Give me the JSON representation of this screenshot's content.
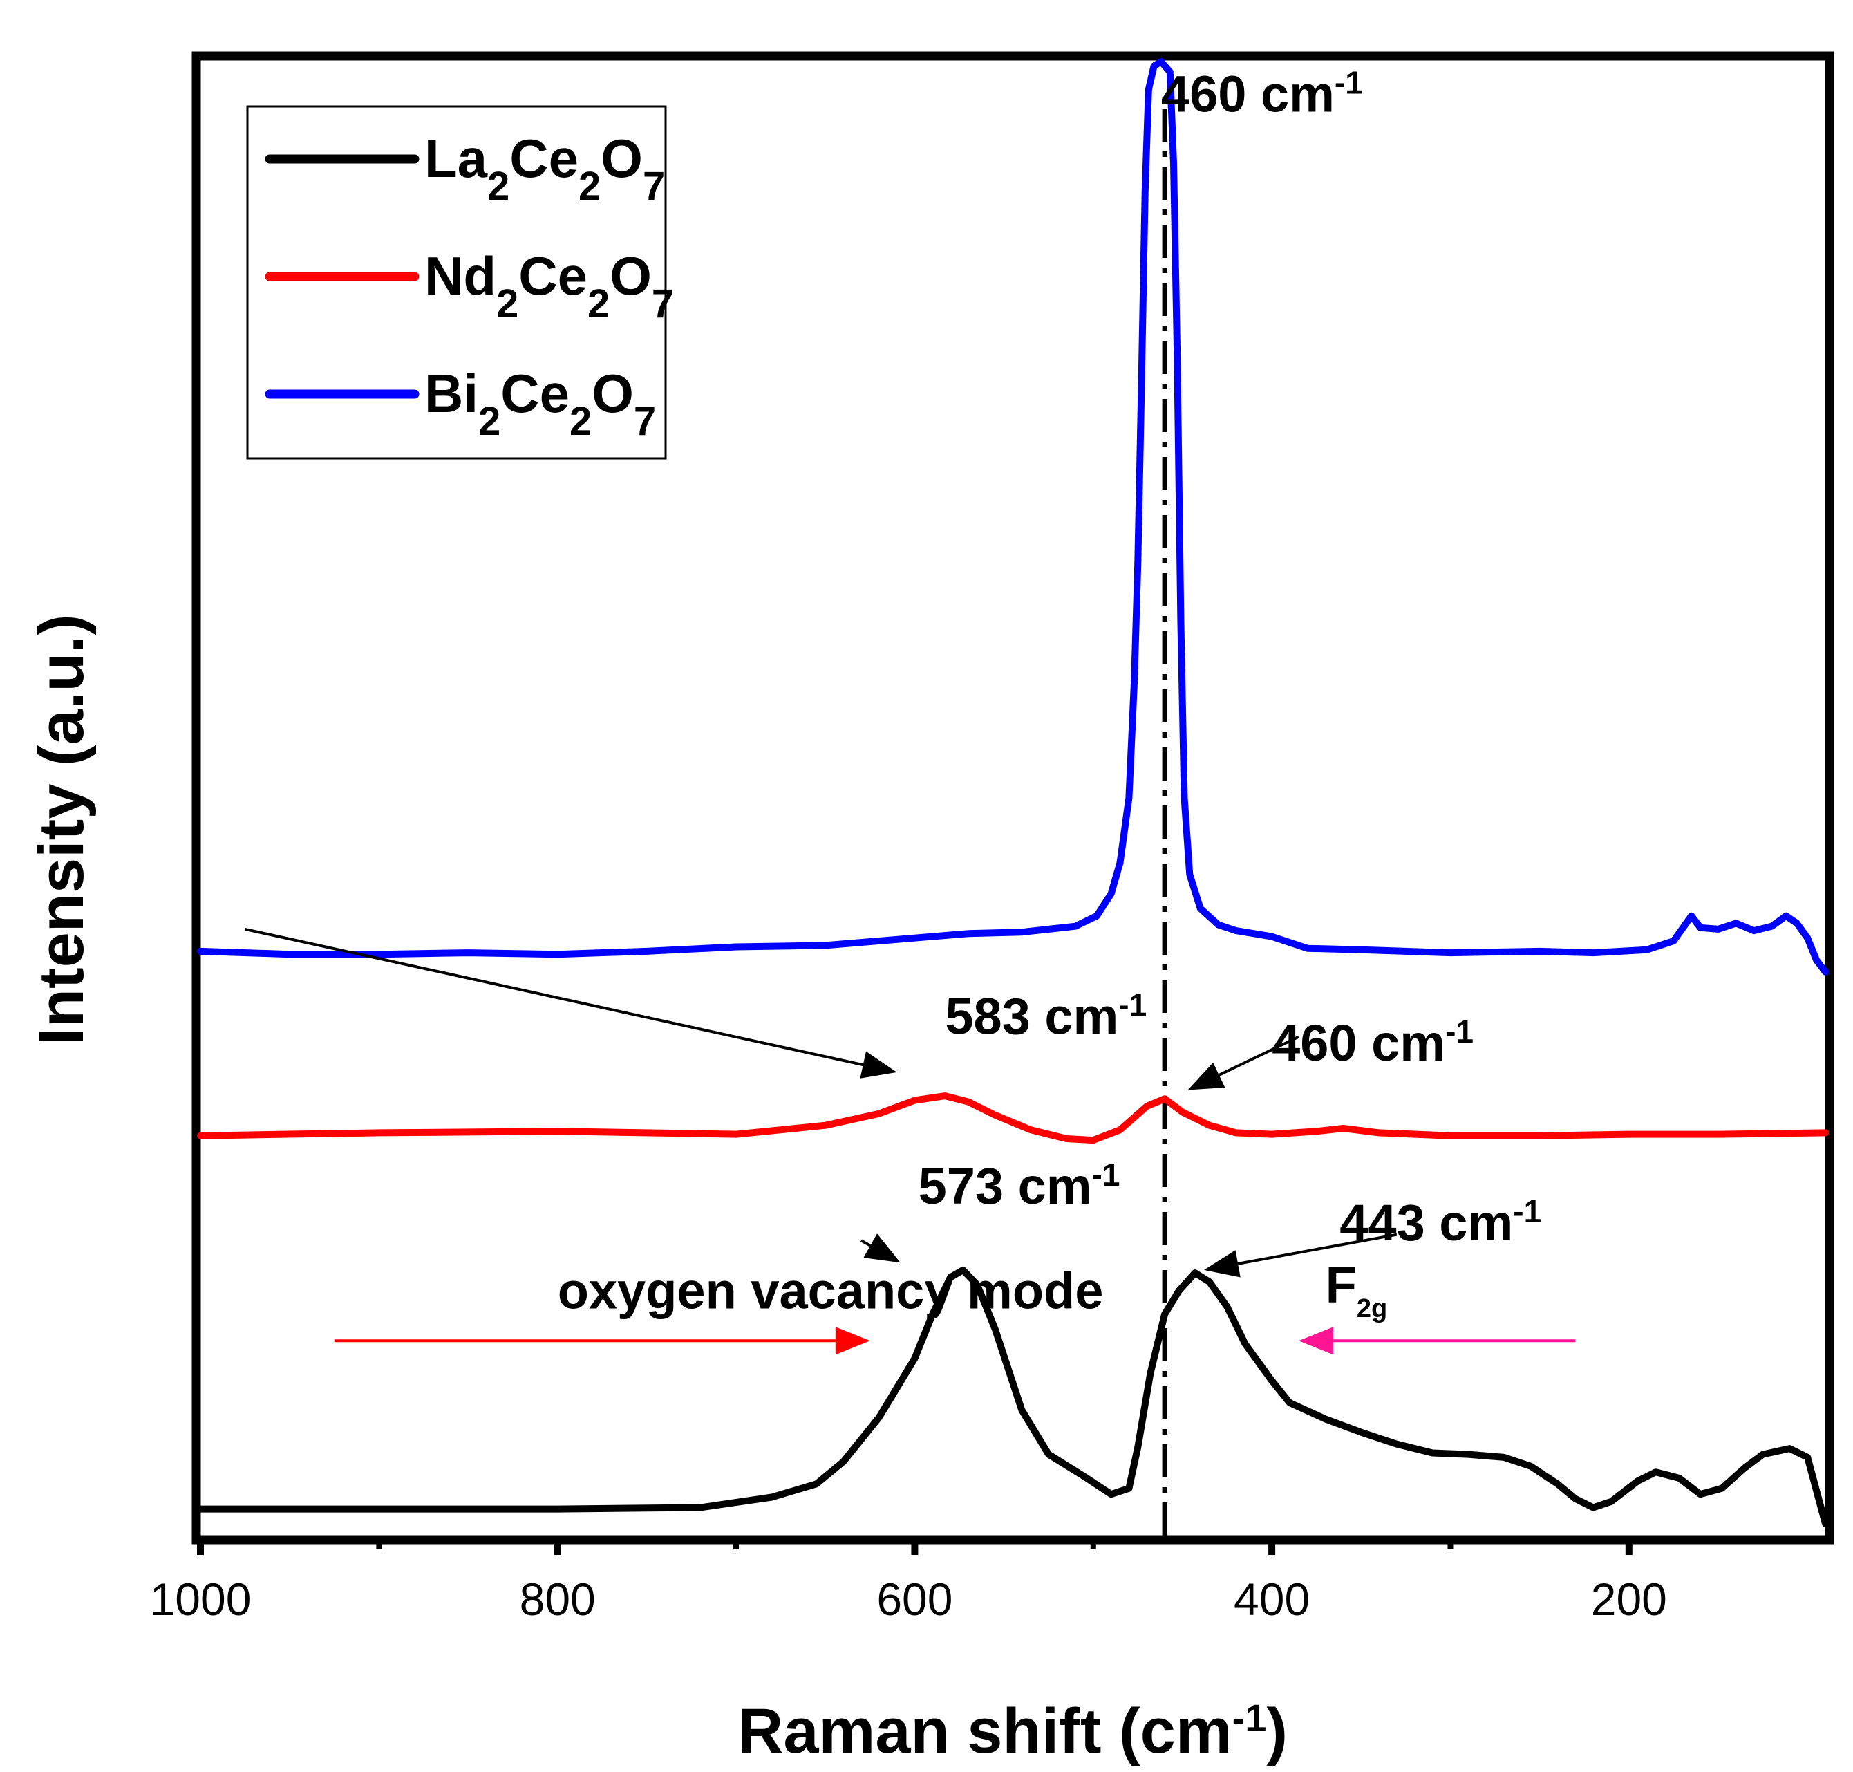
{
  "chart_data": {
    "type": "line",
    "title": "",
    "xlabel": "Raman shift (cm",
    "xlabel_sup": "-1",
    "xlabel_close": ")",
    "ylabel": "Intensity (a.u.)",
    "xlim": [
      1000,
      90
    ],
    "x_reversed": true,
    "ylim": [
      0,
      100
    ],
    "x_ticks": [
      1000,
      800,
      600,
      400,
      200
    ],
    "x_ticks_minor": [
      900,
      700,
      500,
      300
    ],
    "grid": false,
    "legend_position": "top-left",
    "series": [
      {
        "name": "La2Ce2O7",
        "label_parts": [
          [
            "La",
            ""
          ],
          [
            "2",
            "sub"
          ],
          [
            "Ce",
            ""
          ],
          [
            "2",
            "sub"
          ],
          [
            "O",
            ""
          ],
          [
            "7",
            "sub"
          ]
        ],
        "color": "#000000",
        "points": [
          [
            1000,
            1.8
          ],
          [
            900,
            1.8
          ],
          [
            800,
            1.8
          ],
          [
            720,
            1.9
          ],
          [
            680,
            2.6
          ],
          [
            655,
            3.5
          ],
          [
            640,
            5.0
          ],
          [
            620,
            8.0
          ],
          [
            600,
            12.0
          ],
          [
            590,
            15.0
          ],
          [
            580,
            17.5
          ],
          [
            573,
            18.0
          ],
          [
            565,
            17.0
          ],
          [
            555,
            14.0
          ],
          [
            540,
            8.5
          ],
          [
            525,
            5.5
          ],
          [
            505,
            4.0
          ],
          [
            490,
            2.8
          ],
          [
            480,
            3.2
          ],
          [
            475,
            6.0
          ],
          [
            468,
            11.0
          ],
          [
            460,
            15.0
          ],
          [
            452,
            16.6
          ],
          [
            443,
            17.8
          ],
          [
            435,
            17.2
          ],
          [
            425,
            15.5
          ],
          [
            415,
            13.0
          ],
          [
            400,
            10.5
          ],
          [
            390,
            9.0
          ],
          [
            370,
            7.9
          ],
          [
            350,
            7.0
          ],
          [
            330,
            6.2
          ],
          [
            310,
            5.6
          ],
          [
            290,
            5.5
          ],
          [
            270,
            5.3
          ],
          [
            255,
            4.7
          ],
          [
            240,
            3.5
          ],
          [
            230,
            2.5
          ],
          [
            220,
            1.9
          ],
          [
            210,
            2.3
          ],
          [
            195,
            3.7
          ],
          [
            185,
            4.3
          ],
          [
            172,
            3.9
          ],
          [
            160,
            2.8
          ],
          [
            148,
            3.2
          ],
          [
            135,
            4.6
          ],
          [
            125,
            5.5
          ],
          [
            110,
            5.9
          ],
          [
            100,
            5.3
          ],
          [
            90,
            0.8
          ]
        ]
      },
      {
        "name": "Nd2Ce2O7",
        "label_parts": [
          [
            "Nd",
            ""
          ],
          [
            "2",
            "sub"
          ],
          [
            "Ce",
            ""
          ],
          [
            "2",
            "sub"
          ],
          [
            "O",
            ""
          ],
          [
            "7",
            "sub"
          ]
        ],
        "color": "#ff0000",
        "points": [
          [
            1000,
            27.1
          ],
          [
            900,
            27.3
          ],
          [
            800,
            27.4
          ],
          [
            700,
            27.2
          ],
          [
            650,
            27.8
          ],
          [
            620,
            28.6
          ],
          [
            600,
            29.5
          ],
          [
            583,
            29.8
          ],
          [
            570,
            29.4
          ],
          [
            555,
            28.5
          ],
          [
            535,
            27.5
          ],
          [
            515,
            26.9
          ],
          [
            500,
            26.8
          ],
          [
            485,
            27.5
          ],
          [
            470,
            29.1
          ],
          [
            460,
            29.6
          ],
          [
            450,
            28.7
          ],
          [
            435,
            27.8
          ],
          [
            420,
            27.3
          ],
          [
            400,
            27.2
          ],
          [
            375,
            27.4
          ],
          [
            360,
            27.6
          ],
          [
            340,
            27.3
          ],
          [
            300,
            27.1
          ],
          [
            250,
            27.1
          ],
          [
            200,
            27.2
          ],
          [
            150,
            27.2
          ],
          [
            90,
            27.3
          ]
        ]
      },
      {
        "name": "Bi2Ce2O7",
        "label_parts": [
          [
            "Bi",
            ""
          ],
          [
            "2",
            "sub"
          ],
          [
            "Ce",
            ""
          ],
          [
            "2",
            "sub"
          ],
          [
            "O",
            ""
          ],
          [
            "7",
            "sub"
          ]
        ],
        "color": "#0000ff",
        "points": [
          [
            1000,
            39.6
          ],
          [
            950,
            39.4
          ],
          [
            900,
            39.4
          ],
          [
            850,
            39.5
          ],
          [
            800,
            39.4
          ],
          [
            750,
            39.6
          ],
          [
            700,
            39.9
          ],
          [
            650,
            40.0
          ],
          [
            600,
            40.5
          ],
          [
            570,
            40.8
          ],
          [
            540,
            40.9
          ],
          [
            510,
            41.3
          ],
          [
            498,
            42.0
          ],
          [
            490,
            43.5
          ],
          [
            485,
            45.6
          ],
          [
            480,
            50.0
          ],
          [
            477,
            58.0
          ],
          [
            475,
            66.0
          ],
          [
            473,
            78.0
          ],
          [
            471,
            91.0
          ],
          [
            469,
            98.0
          ],
          [
            466,
            99.6
          ],
          [
            462,
            99.9
          ],
          [
            457,
            99.2
          ],
          [
            455,
            93.0
          ],
          [
            453,
            80.0
          ],
          [
            451,
            62.0
          ],
          [
            449,
            50.0
          ],
          [
            446,
            44.8
          ],
          [
            440,
            42.5
          ],
          [
            430,
            41.4
          ],
          [
            420,
            41.0
          ],
          [
            400,
            40.6
          ],
          [
            380,
            39.8
          ],
          [
            350,
            39.7
          ],
          [
            300,
            39.5
          ],
          [
            250,
            39.6
          ],
          [
            220,
            39.5
          ],
          [
            190,
            39.7
          ],
          [
            175,
            40.3
          ],
          [
            165,
            42.0
          ],
          [
            160,
            41.2
          ],
          [
            150,
            41.1
          ],
          [
            140,
            41.5
          ],
          [
            130,
            41.0
          ],
          [
            120,
            41.3
          ],
          [
            112,
            42.0
          ],
          [
            106,
            41.5
          ],
          [
            100,
            40.5
          ],
          [
            95,
            39.0
          ],
          [
            90,
            38.2
          ]
        ]
      }
    ],
    "annotations": [
      {
        "text": "460 cm",
        "sup": "-1",
        "x": 462,
        "y": 96.5
      },
      {
        "text": "583 cm",
        "sup": "-1",
        "x": 583,
        "y": 34.0
      },
      {
        "text": "460 cm",
        "sup": "-1",
        "x": 400,
        "y": 32.2
      },
      {
        "text": "573 cm",
        "sup": "-1",
        "x": 598,
        "y": 22.5
      },
      {
        "text": "443 cm",
        "sup": "-1",
        "x": 362,
        "y": 20.0
      },
      {
        "text": "oxygen vacancy mode",
        "sup": "",
        "x": 800,
        "y": 15.4
      },
      {
        "text": "F",
        "sub": "2g",
        "x": 370,
        "y": 15.8
      }
    ],
    "arrows": [
      {
        "from": [
          975,
          41.1
        ],
        "to": [
          610,
          31.4
        ],
        "color": "#000000"
      },
      {
        "from": [
          385,
          33.8
        ],
        "to": [
          447,
          30.2
        ],
        "color": "#000000"
      },
      {
        "from": [
          630,
          20.0
        ],
        "to": [
          608,
          18.5
        ],
        "color": "#000000"
      },
      {
        "from": [
          330,
          20.4
        ],
        "to": [
          438,
          18.0
        ],
        "color": "#000000"
      },
      {
        "from": [
          925,
          13.2
        ],
        "to": [
          625,
          13.2
        ],
        "color": "#ff0000"
      },
      {
        "from": [
          230,
          13.2
        ],
        "to": [
          385,
          13.2
        ],
        "color": "#ff1493"
      }
    ],
    "vertical_line": {
      "x": 460,
      "style": "dash-dot",
      "from_y": 0,
      "to_y": 97.5
    }
  }
}
